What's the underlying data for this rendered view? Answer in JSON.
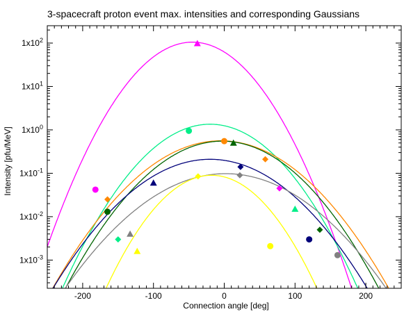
{
  "chart_data": {
    "type": "scatter",
    "title": "3-spacecraft proton event max. intensities and corresponding Gaussians",
    "xlabel": "Connection angle [deg]",
    "ylabel": "Intensity [pfu/MeV]",
    "xlim": [
      -250,
      250
    ],
    "ylim_log10": [
      -3.65,
      2.4
    ],
    "yscale": "log",
    "x_ticks": [
      -200,
      -100,
      0,
      100,
      200
    ],
    "x_tick_labels": [
      "-200",
      "-100",
      "0",
      "100",
      "200"
    ],
    "y_ticks_log10": [
      -3,
      -2,
      -1,
      0,
      1,
      2
    ],
    "y_tick_labels": [
      {
        "base": "1x10",
        "exp": "-3"
      },
      {
        "base": "1x10",
        "exp": "-2"
      },
      {
        "base": "1x10",
        "exp": "-1"
      },
      {
        "base": "1x10",
        "exp": "0"
      },
      {
        "base": "1x10",
        "exp": "1"
      },
      {
        "base": "1x10",
        "exp": "2"
      }
    ],
    "grid": false,
    "series": [
      {
        "color": "#ff00ff",
        "points": [
          {
            "x": -182,
            "y": 0.042,
            "marker": "circle"
          },
          {
            "x": -38,
            "y": 98,
            "marker": "triangle"
          },
          {
            "x": 78,
            "y": 0.045,
            "marker": "diamond"
          }
        ],
        "curve": {
          "peak": 105,
          "center": -45,
          "sigma": 44
        }
      },
      {
        "color": "#00ee88",
        "points": [
          {
            "x": -150,
            "y": 0.003,
            "marker": "diamond"
          },
          {
            "x": -50,
            "y": 0.95,
            "marker": "circle"
          },
          {
            "x": 100,
            "y": 0.015,
            "marker": "triangle"
          }
        ],
        "curve": {
          "peak": 1.35,
          "center": -20,
          "sigma": 50
        }
      },
      {
        "color": "#ff8800",
        "points": [
          {
            "x": -165,
            "y": 0.025,
            "marker": "diamond"
          },
          {
            "x": 0,
            "y": 0.55,
            "marker": "circle"
          },
          {
            "x": 58,
            "y": 0.21,
            "marker": "diamond"
          }
        ],
        "curve": {
          "peak": 0.56,
          "center": -5,
          "sigma": 60
        }
      },
      {
        "color": "#006400",
        "points": [
          {
            "x": -165,
            "y": 0.013,
            "marker": "circle"
          },
          {
            "x": 13,
            "y": 0.5,
            "marker": "triangle"
          },
          {
            "x": 135,
            "y": 0.005,
            "marker": "diamond"
          }
        ],
        "curve": {
          "peak": 0.55,
          "center": -3,
          "sigma": 56
        }
      },
      {
        "color": "#00007a",
        "points": [
          {
            "x": -100,
            "y": 0.06,
            "marker": "triangle"
          },
          {
            "x": 23,
            "y": 0.14,
            "marker": "diamond"
          },
          {
            "x": 120,
            "y": 0.003,
            "marker": "circle"
          }
        ],
        "curve": {
          "peak": 0.21,
          "center": -20,
          "sigma": 60
        }
      },
      {
        "color": "#808080",
        "points": [
          {
            "x": -133,
            "y": 0.004,
            "marker": "triangle"
          },
          {
            "x": 22,
            "y": 0.09,
            "marker": "diamond"
          },
          {
            "x": 160,
            "y": 0.0013,
            "marker": "circle"
          }
        ],
        "curve": {
          "peak": 0.098,
          "center": 2,
          "sigma": 65
        }
      },
      {
        "color": "#ffff00",
        "points": [
          {
            "x": -123,
            "y": 0.0016,
            "marker": "triangle"
          },
          {
            "x": -37,
            "y": 0.085,
            "marker": "diamond"
          },
          {
            "x": 65,
            "y": 0.0021,
            "marker": "circle"
          }
        ],
        "curve": {
          "peak": 0.09,
          "center": -18,
          "sigma": 43
        }
      }
    ]
  }
}
